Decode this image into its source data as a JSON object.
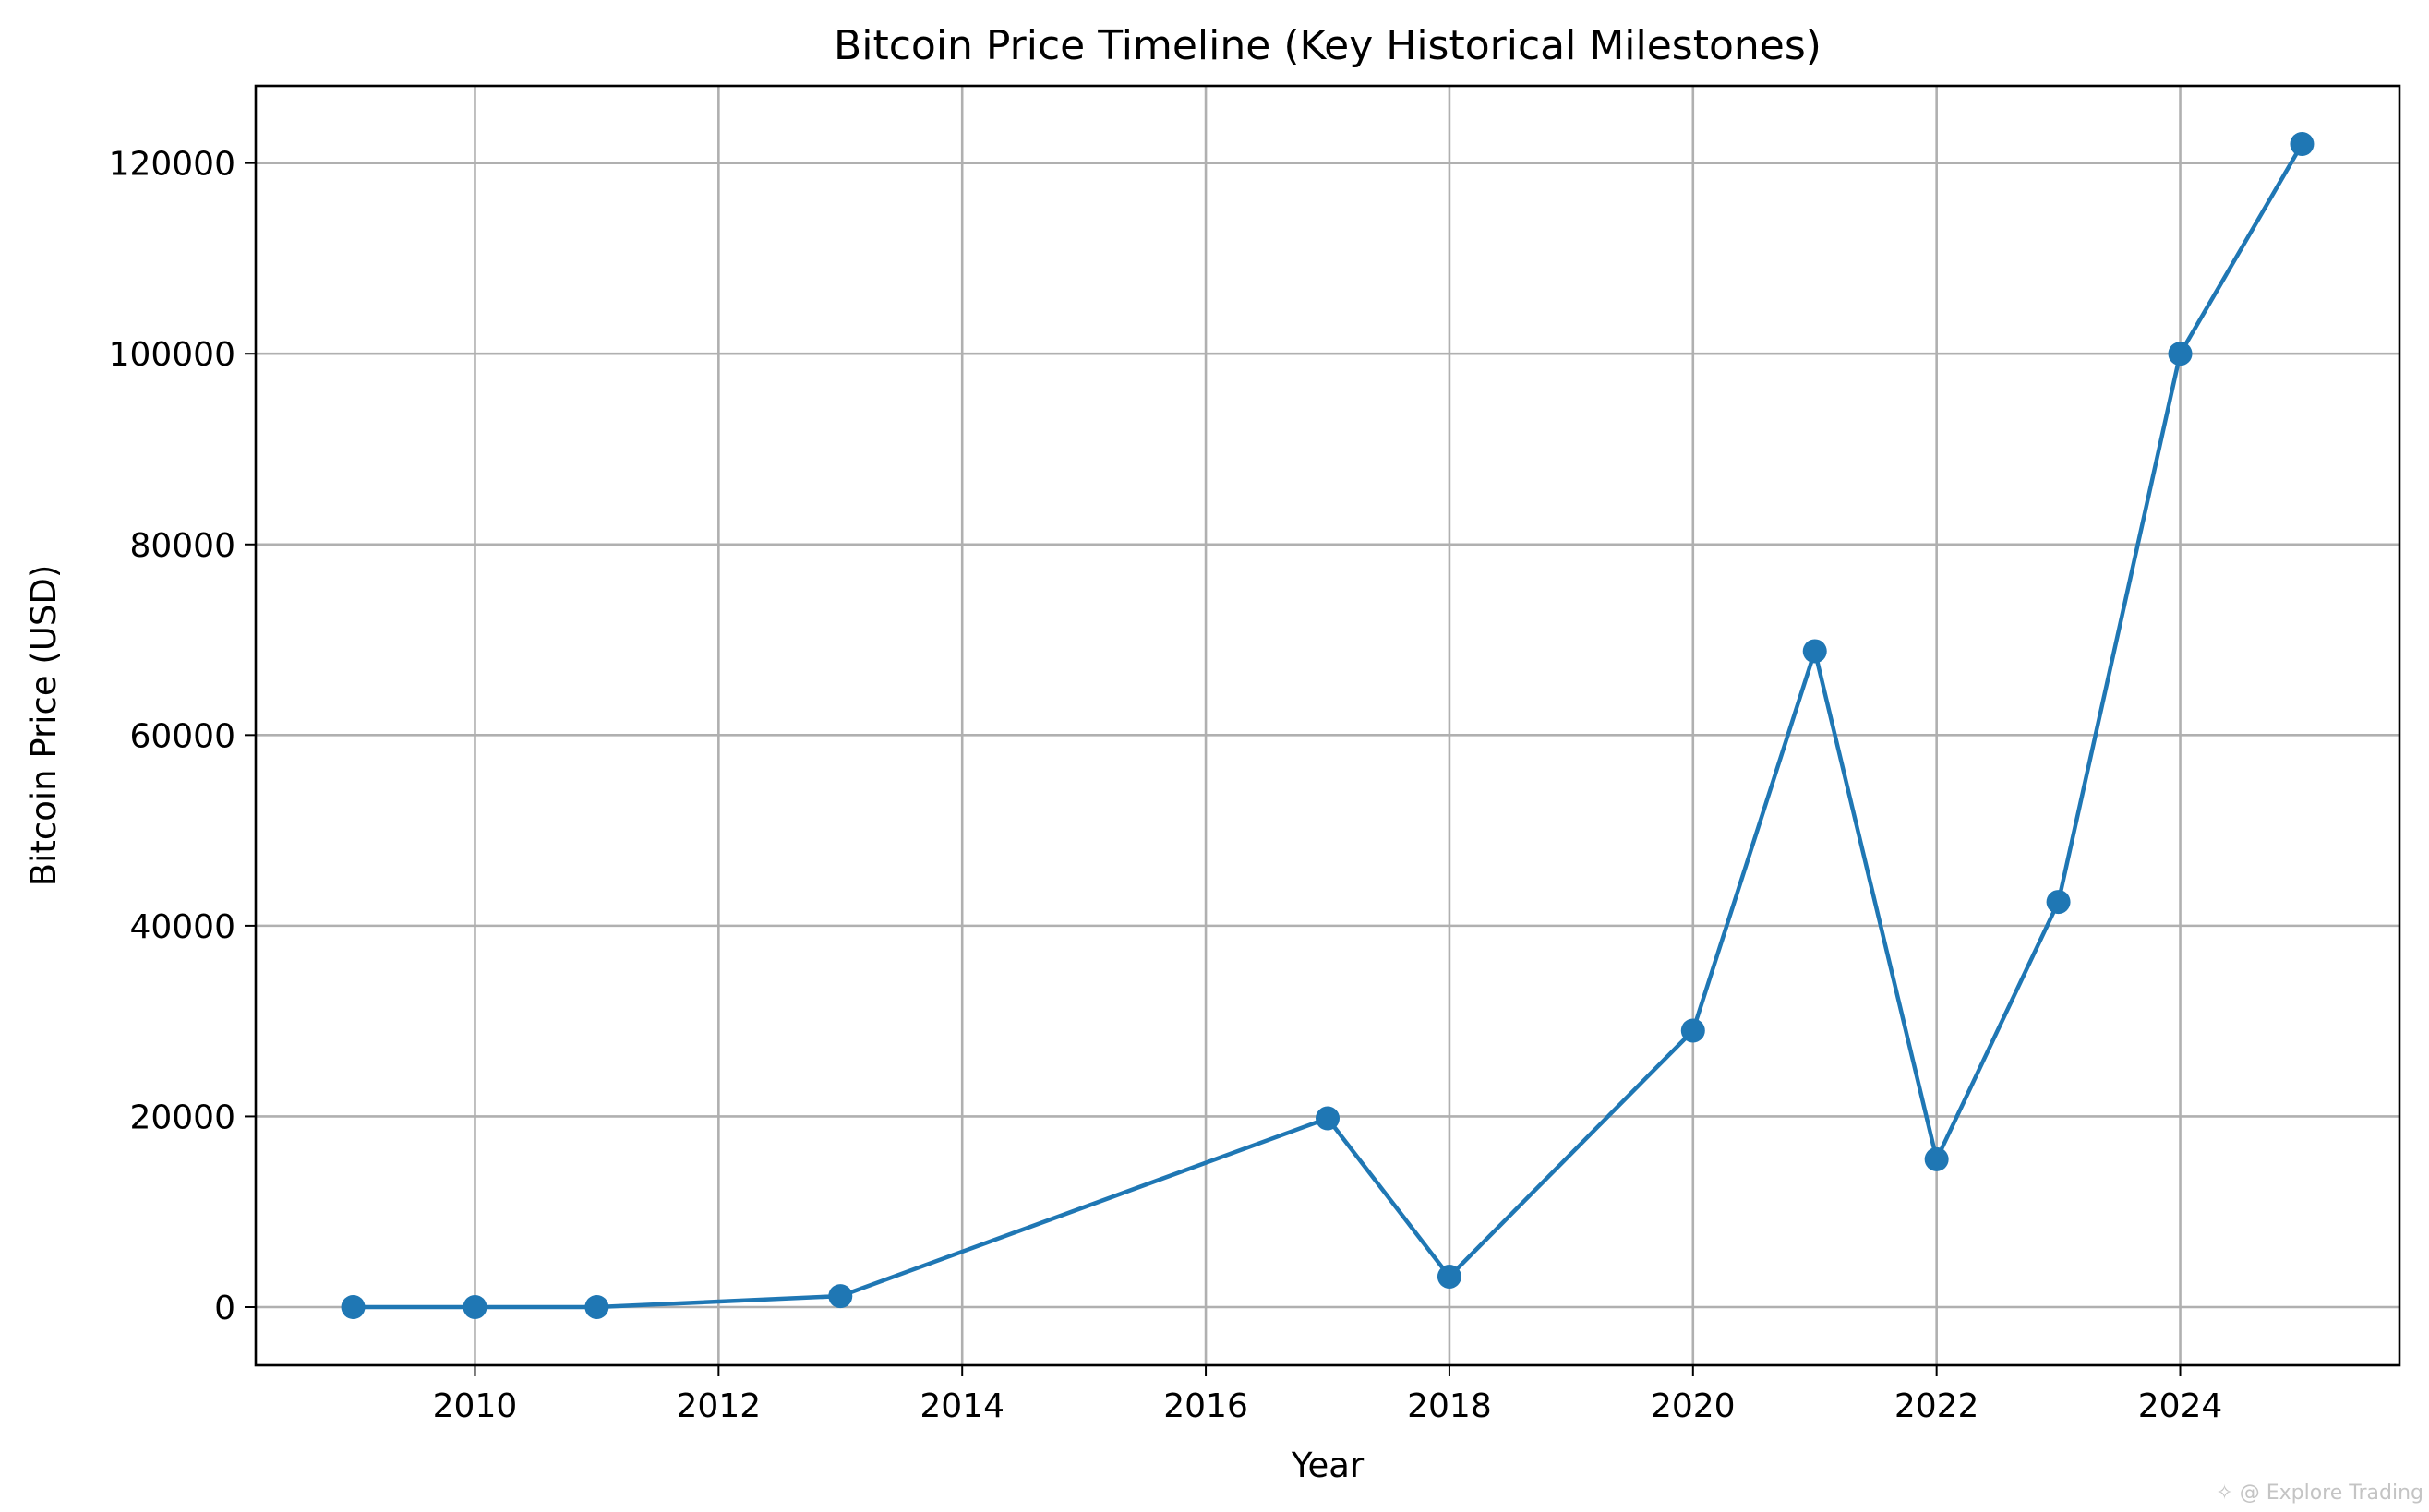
{
  "chart_data": {
    "type": "line",
    "title": "Bitcoin Price Timeline (Key Historical Milestones)",
    "xlabel": "Year",
    "ylabel": "Bitcoin Price (USD)",
    "x": [
      2009,
      2010,
      2011,
      2013,
      2017,
      2018,
      2020,
      2021,
      2022,
      2023,
      2024,
      2025
    ],
    "series": [
      {
        "name": "Bitcoin Price",
        "values": [
          0,
          0.08,
          1,
          1150,
          19800,
          3200,
          29000,
          68800,
          15500,
          42500,
          100000,
          122000
        ]
      }
    ],
    "xlim": [
      2008.2,
      2025.8
    ],
    "ylim": [
      -6100,
      128100
    ],
    "xticks": [
      2010,
      2012,
      2014,
      2016,
      2018,
      2020,
      2022,
      2024
    ],
    "yticks": [
      0,
      20000,
      40000,
      60000,
      80000,
      100000,
      120000
    ],
    "grid": true,
    "marker": "circle",
    "color": "#1f77b4"
  },
  "watermark": "@ Explore Trading"
}
